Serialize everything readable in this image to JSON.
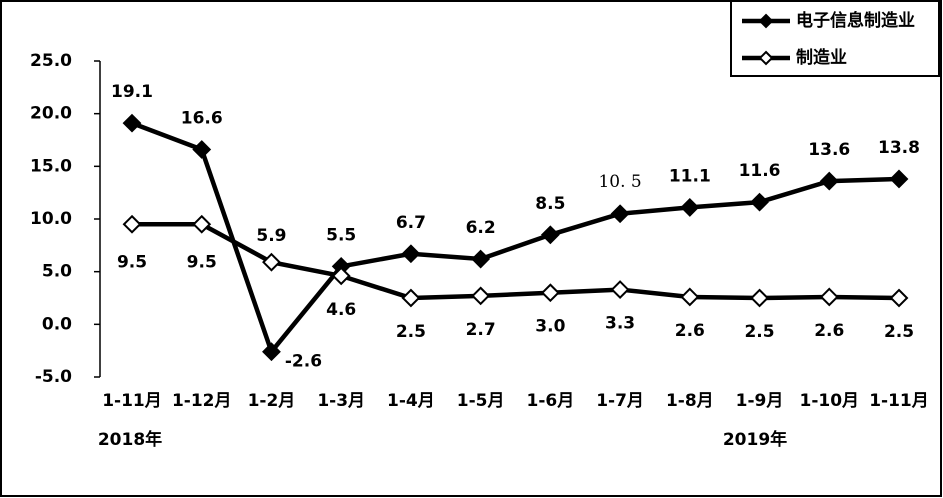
{
  "chart_data": {
    "type": "line",
    "categories": [
      "1-11月",
      "1-12月",
      "1-2月",
      "1-3月",
      "1-4月",
      "1-5月",
      "1-6月",
      "1-7月",
      "1-8月",
      "1-9月",
      "1-10月",
      "1-11月"
    ],
    "series": [
      {
        "name": "电子信息制造业",
        "color": "#000000",
        "marker": "filled-diamond",
        "values": [
          19.1,
          16.6,
          -2.6,
          5.5,
          6.7,
          6.2,
          8.5,
          10.5,
          11.1,
          11.6,
          13.6,
          13.8
        ],
        "value_labels": [
          "19.1",
          "16.6",
          "-2.6",
          "5.5",
          "6.7",
          "6.2",
          "8.5",
          "10. 5",
          "11.1",
          "11.6",
          "13.6",
          "13.8"
        ]
      },
      {
        "name": "制造业",
        "color": "#000000",
        "marker": "open-diamond",
        "values": [
          9.5,
          9.5,
          5.9,
          4.6,
          2.5,
          2.7,
          3.0,
          3.3,
          2.6,
          2.5,
          2.6,
          2.5
        ],
        "value_labels": [
          "9.5",
          "9.5",
          "5.9",
          "4.6",
          "2.5",
          "2.7",
          "3.0",
          "3.3",
          "2.6",
          "2.5",
          "2.6",
          "2.5"
        ]
      }
    ],
    "ylim": [
      -5,
      25
    ],
    "yticks": [
      {
        "value": -5,
        "label": "-5.0"
      },
      {
        "value": 0,
        "label": "0.0"
      },
      {
        "value": 5,
        "label": "5.0"
      },
      {
        "value": 10,
        "label": "10.0"
      },
      {
        "value": 15,
        "label": "15.0"
      },
      {
        "value": 20,
        "label": "20.0"
      },
      {
        "value": 25,
        "label": "25.0"
      }
    ],
    "annotations": [
      "2018年",
      "2019年"
    ],
    "legend": "top-right"
  }
}
